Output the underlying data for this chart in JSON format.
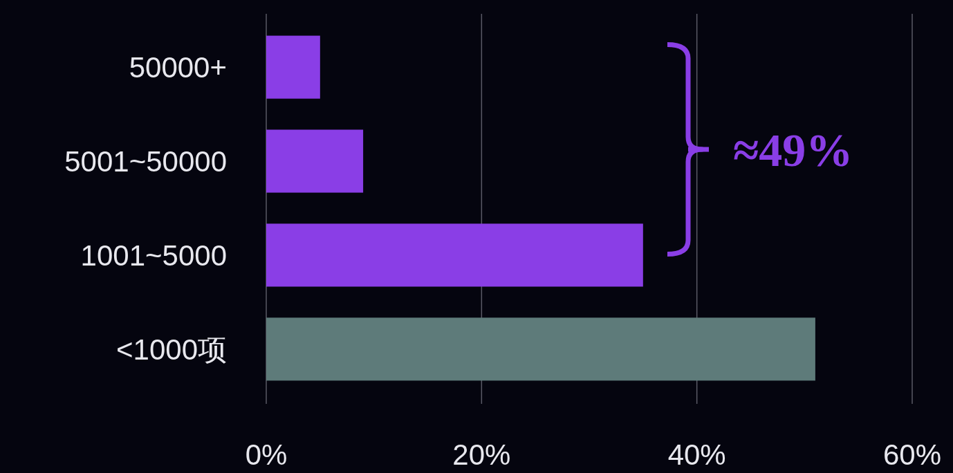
{
  "chart_data": {
    "type": "bar",
    "orientation": "horizontal",
    "categories": [
      "50000+",
      "5001~50000",
      "1001~5000",
      "<1000项"
    ],
    "values": [
      5,
      9,
      35,
      51
    ],
    "colors": [
      "#8a3ee6",
      "#8a3ee6",
      "#8a3ee6",
      "#5e7b7a"
    ],
    "xlim": [
      0,
      60
    ],
    "xticks": [
      {
        "value": 0,
        "label": "0%"
      },
      {
        "value": 20,
        "label": "20%"
      },
      {
        "value": 40,
        "label": "40%"
      },
      {
        "value": 60,
        "label": "60%"
      }
    ],
    "grid": "x",
    "annotations": [
      "≈49%"
    ]
  }
}
